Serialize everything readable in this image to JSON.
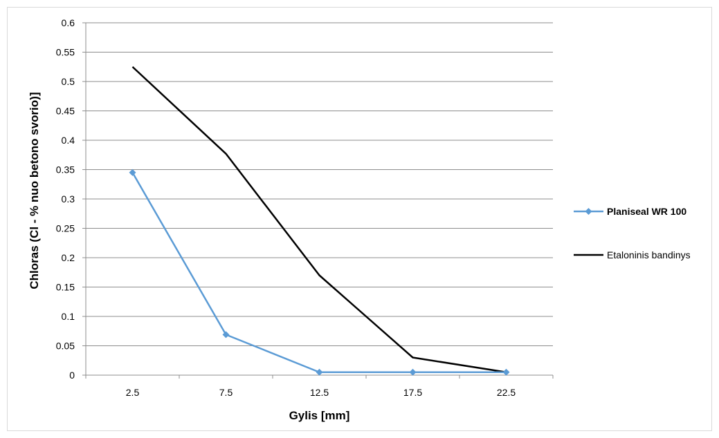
{
  "chart_data": {
    "type": "line",
    "xlabel": "Gylis [mm]",
    "ylabel": "Chloras (Cl - % nuo betono svorio)]",
    "categories": [
      "2.5",
      "7.5",
      "12.5",
      "17.5",
      "22.5"
    ],
    "ylim": [
      0,
      0.6
    ],
    "yticks": [
      "0",
      "0.05",
      "0.1",
      "0.15",
      "0.2",
      "0.25",
      "0.3",
      "0.35",
      "0.4",
      "0.45",
      "0.5",
      "0.55",
      "0.6"
    ],
    "grid": true,
    "legend_position": "right",
    "series": [
      {
        "name": "Planiseal WR 100",
        "values": [
          0.345,
          0.069,
          0.005,
          0.005,
          0.005
        ],
        "color": "#5b9bd5",
        "marker": "diamond",
        "bold_label": true
      },
      {
        "name": "Etaloninis bandinys",
        "values": [
          0.525,
          0.377,
          0.17,
          0.03,
          0.005
        ],
        "color": "#000000",
        "marker": "none",
        "bold_label": false
      }
    ]
  }
}
